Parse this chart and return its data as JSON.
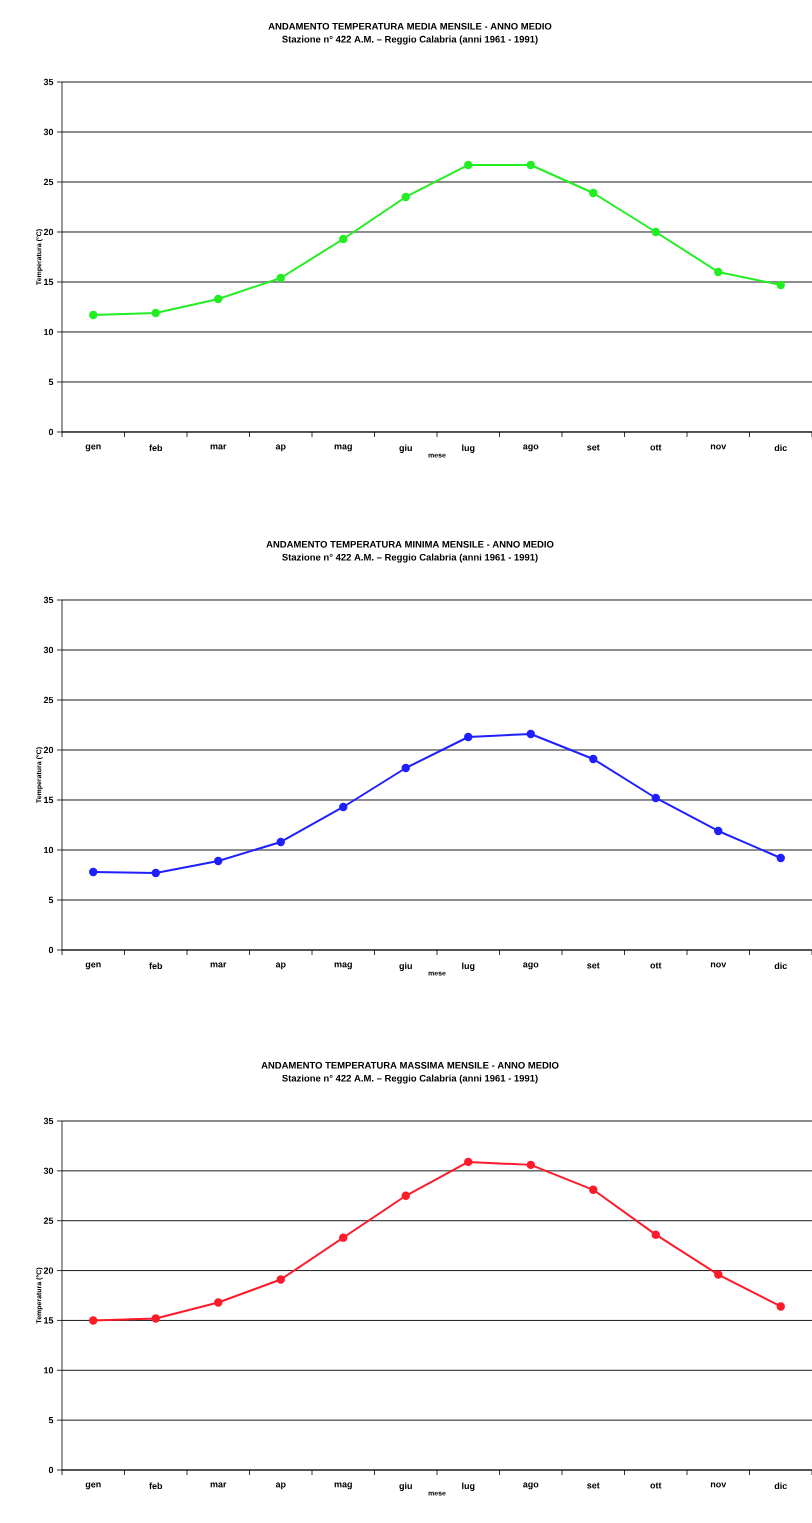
{
  "chart_data": [
    {
      "type": "line",
      "title": "ANDAMENTO TEMPERATURA MEDIA MENSILE - ANNO MEDIO",
      "subtitle": "Stazione n° 422 A.M. – Reggio Calabria (anni 1961 -  1991)",
      "xlabel": "mese",
      "ylabel": "Temperatura (°C)",
      "categories": [
        "gen",
        "feb",
        "mar",
        "ap",
        "mag",
        "giu",
        "lug",
        "ago",
        "set",
        "ott",
        "nov",
        "dic"
      ],
      "series": [
        {
          "color": "#22ee22",
          "values": [
            11.7,
            11.9,
            13.3,
            15.4,
            19.3,
            23.5,
            26.7,
            26.7,
            23.9,
            20.0,
            16.0,
            14.7
          ]
        }
      ],
      "ylim": [
        0,
        35
      ],
      "yticks": [
        0,
        5,
        10,
        15,
        20,
        25,
        30,
        35
      ],
      "grid": "y",
      "marker": "circle",
      "line_style": "solid"
    },
    {
      "type": "line",
      "title": "ANDAMENTO TEMPERATURA MINIMA MENSILE - ANNO MEDIO",
      "subtitle": "Stazione n° 422 A.M. – Reggio Calabria (anni 1961 -  1991)",
      "xlabel": "mese",
      "ylabel": "Temperatura (°C)",
      "categories": [
        "gen",
        "feb",
        "mar",
        "ap",
        "mag",
        "giu",
        "lug",
        "ago",
        "set",
        "ott",
        "nov",
        "dic"
      ],
      "series": [
        {
          "color": "#1f1fff",
          "values": [
            7.8,
            7.7,
            8.9,
            10.8,
            14.3,
            18.2,
            21.3,
            21.6,
            19.1,
            15.2,
            11.9,
            9.2
          ]
        }
      ],
      "ylim": [
        0,
        35
      ],
      "yticks": [
        0,
        5,
        10,
        15,
        20,
        25,
        30,
        35
      ],
      "grid": "y",
      "marker": "circle",
      "line_style": "solid"
    },
    {
      "type": "line",
      "title": "ANDAMENTO TEMPERATURA MASSIMA MENSILE - ANNO MEDIO",
      "subtitle": "Stazione n° 422 A.M. – Reggio Calabria (anni 1961 -  1991)",
      "xlabel": "mese",
      "ylabel": "Temperatura (°C)",
      "categories": [
        "gen",
        "feb",
        "mar",
        "ap",
        "mag",
        "giu",
        "lug",
        "ago",
        "set",
        "ott",
        "nov",
        "dic"
      ],
      "series": [
        {
          "color": "#ff1a2a",
          "values": [
            15.0,
            15.2,
            16.8,
            19.1,
            23.3,
            27.5,
            30.9,
            30.6,
            28.1,
            23.6,
            19.6,
            16.4
          ]
        }
      ],
      "ylim": [
        0,
        35
      ],
      "yticks": [
        0,
        5,
        10,
        15,
        20,
        25,
        30,
        35
      ],
      "grid": "y",
      "marker": "circle",
      "line_style": "solid"
    }
  ]
}
